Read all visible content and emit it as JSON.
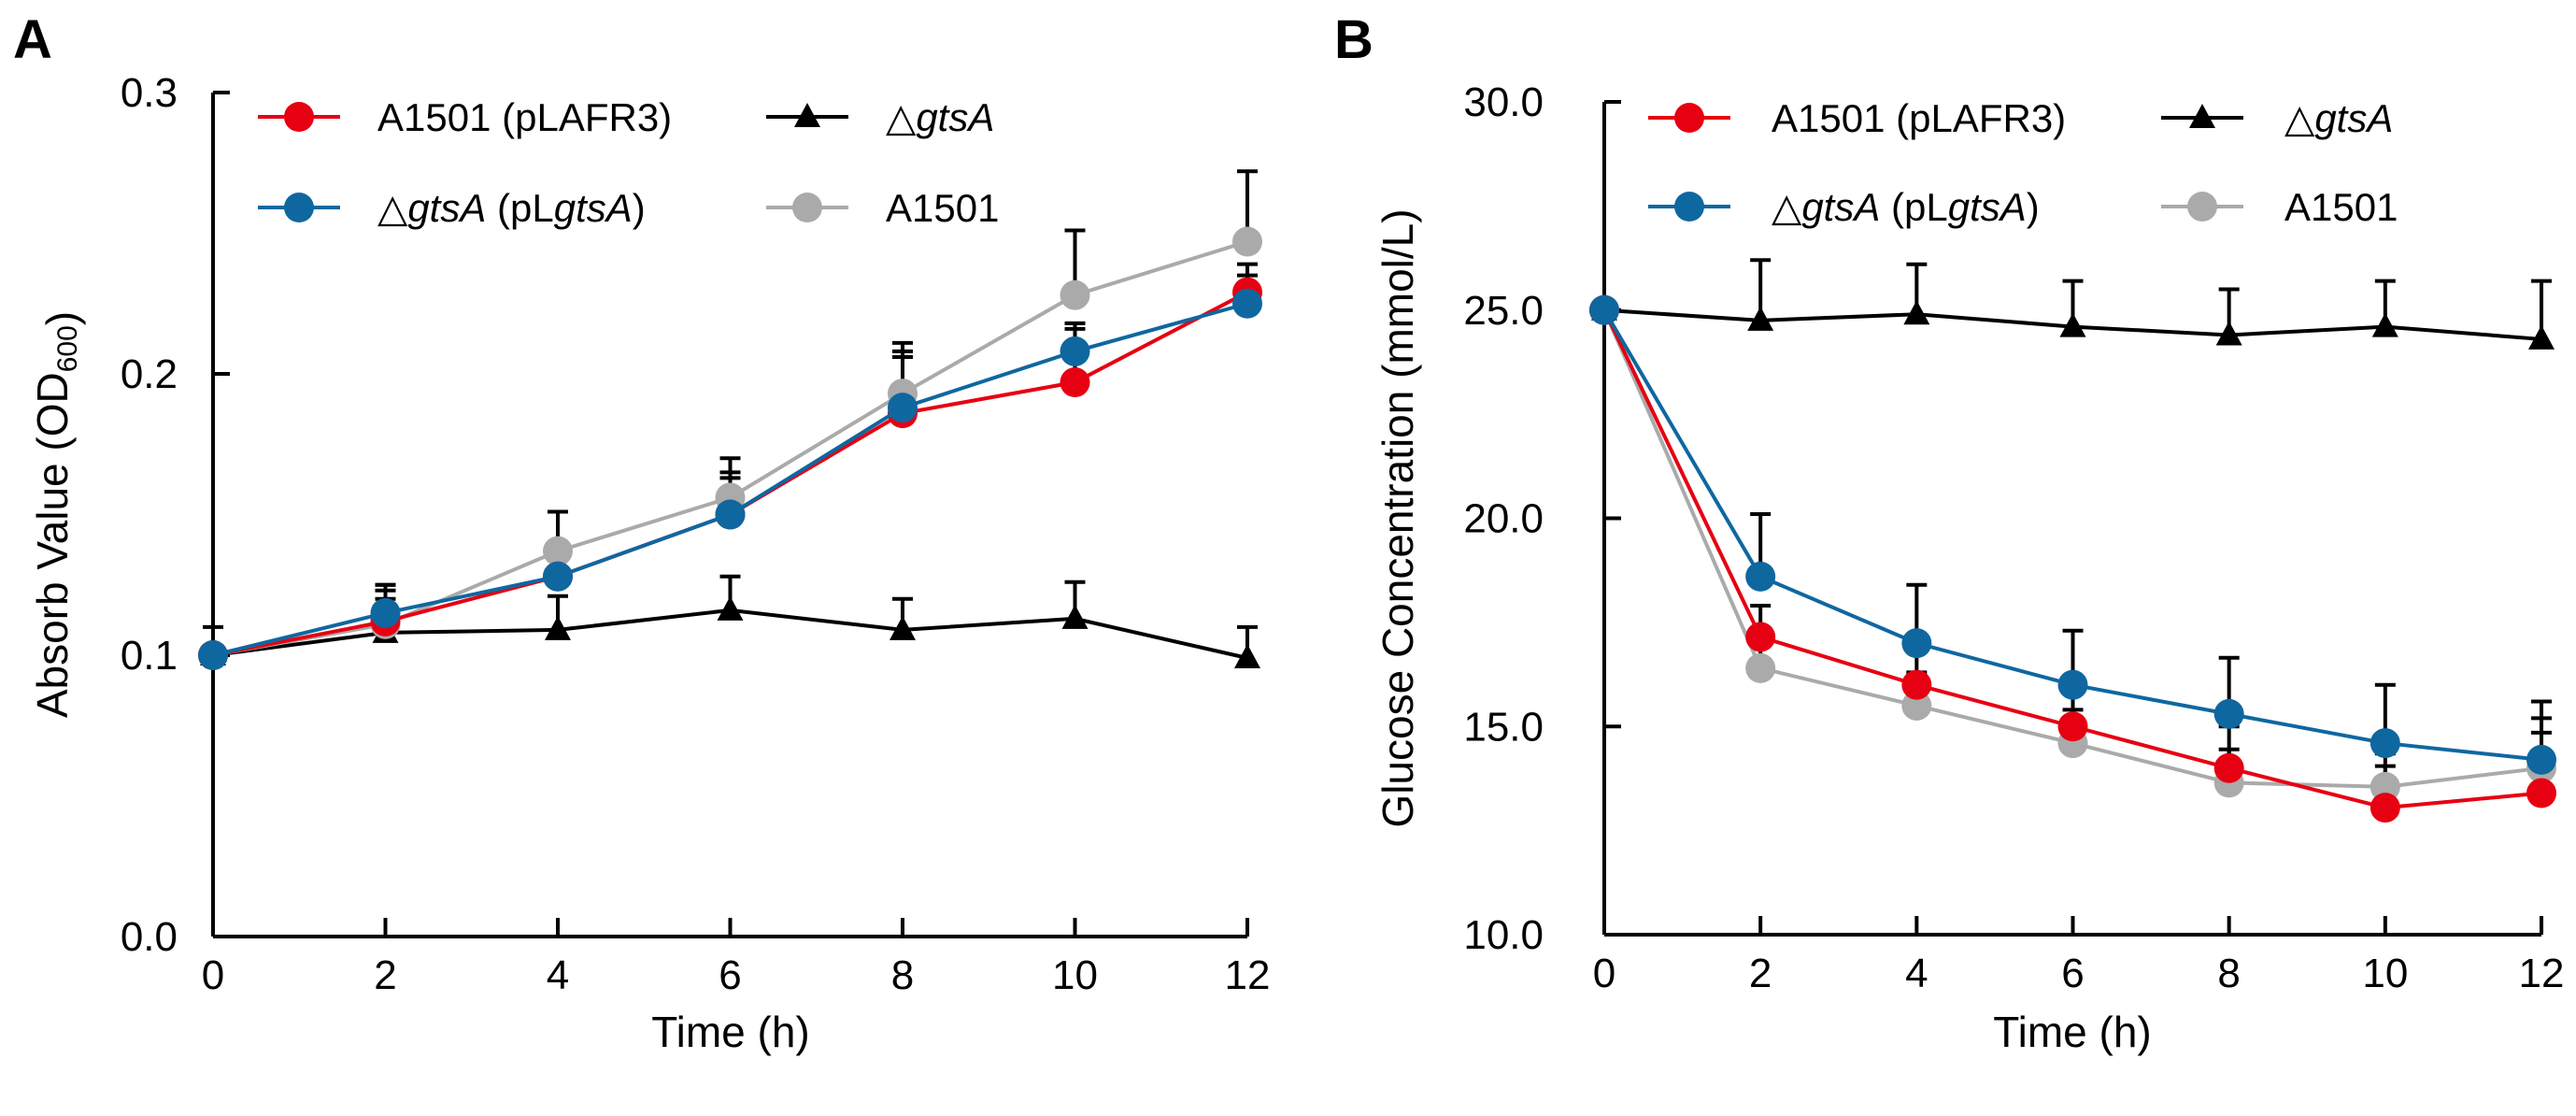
{
  "chart_data": [
    {
      "type": "line",
      "panel_label": "A",
      "xlabel": "Time (h)",
      "ylabel_parts": [
        {
          "t": "Absorb Value (OD"
        },
        {
          "t": "600",
          "sub": true
        },
        {
          "t": ")"
        }
      ],
      "ylabel": "Absorb Value (OD600)",
      "x": [
        0,
        2,
        4,
        6,
        8,
        10,
        12
      ],
      "xlim": [
        0,
        12
      ],
      "ylim": [
        0,
        0.3
      ],
      "x_ticks": [
        "0",
        "2",
        "4",
        "6",
        "8",
        "10",
        "12"
      ],
      "y_ticks": [
        {
          "v": 0,
          "label": "0.0"
        },
        {
          "v": 0.1,
          "label": "0.1"
        },
        {
          "v": 0.2,
          "label": "0.2"
        },
        {
          "v": 0.3,
          "label": "0.3"
        }
      ],
      "grid": false,
      "legend_position": "top",
      "series": [
        {
          "name": "ΔgtsA",
          "label_parts": [
            {
              "t": "△"
            },
            {
              "t": "gtsA",
              "i": true
            }
          ],
          "color": "#000000",
          "marker": "triangle",
          "values": [
            0.1,
            0.108,
            0.109,
            0.116,
            0.109,
            0.113,
            0.099
          ],
          "errors": [
            0.01,
            0.012,
            0.012,
            0.012,
            0.011,
            0.013,
            0.011
          ]
        },
        {
          "name": "A1501",
          "label_parts": [
            {
              "t": "A1501"
            }
          ],
          "color": "#aaaaaa",
          "marker": "circle",
          "values": [
            0.1,
            0.111,
            0.137,
            0.156,
            0.193,
            0.228,
            0.247
          ],
          "errors": [
            0.003,
            0.014,
            0.014,
            0.014,
            0.018,
            0.023,
            0.025
          ]
        },
        {
          "name": "A1501 (pLAFR3)",
          "label_parts": [
            {
              "t": "A1501 (pLAFR3)"
            }
          ],
          "color": "#e60012",
          "marker": "circle",
          "values": [
            0.1,
            0.112,
            0.128,
            0.15,
            0.186,
            0.197,
            0.229
          ],
          "errors": [
            0.003,
            0.013,
            0.01,
            0.015,
            0.022,
            0.019,
            0.01
          ]
        },
        {
          "name": "ΔgtsA (pLgtsA)",
          "label_parts": [
            {
              "t": "△"
            },
            {
              "t": "gtsA",
              "i": true
            },
            {
              "t": " (pL"
            },
            {
              "t": "gtsA",
              "i": true
            },
            {
              "t": ")"
            }
          ],
          "color": "#0f67a0",
          "marker": "circle",
          "values": [
            0.1,
            0.115,
            0.128,
            0.15,
            0.188,
            0.208,
            0.225
          ],
          "errors": [
            0.003,
            0.008,
            0.008,
            0.013,
            0.018,
            0.01,
            0.01
          ]
        }
      ]
    },
    {
      "type": "line",
      "panel_label": "B",
      "xlabel": "Time (h)",
      "ylabel_parts": [
        {
          "t": "Glucose Concentration (mmol/L)"
        }
      ],
      "ylabel": "Glucose Concentration (mmol/L)",
      "x": [
        0,
        2,
        4,
        6,
        8,
        10,
        12
      ],
      "xlim": [
        0,
        12
      ],
      "ylim": [
        10,
        30
      ],
      "x_ticks": [
        "0",
        "2",
        "4",
        "6",
        "8",
        "10",
        "12"
      ],
      "y_ticks": [
        {
          "v": 10,
          "label": "10.0"
        },
        {
          "v": 15,
          "label": "15.0"
        },
        {
          "v": 20,
          "label": "20.0"
        },
        {
          "v": 25,
          "label": "25.0"
        },
        {
          "v": 30,
          "label": "30.0"
        }
      ],
      "grid": false,
      "legend_position": "top",
      "series": [
        {
          "name": "ΔgtsA",
          "label_parts": [
            {
              "t": "△"
            },
            {
              "t": "gtsA",
              "i": true
            }
          ],
          "color": "#000000",
          "marker": "triangle",
          "values": [
            25.0,
            24.75,
            24.9,
            24.6,
            24.4,
            24.6,
            24.3
          ],
          "errors": [
            0,
            1.45,
            1.2,
            1.1,
            1.1,
            1.1,
            1.4
          ]
        },
        {
          "name": "A1501",
          "label_parts": [
            {
              "t": "A1501"
            }
          ],
          "color": "#aaaaaa",
          "marker": "circle",
          "values": [
            25.0,
            16.4,
            15.5,
            14.6,
            13.65,
            13.55,
            14.0
          ],
          "errors": [
            0,
            0.8,
            0.8,
            0.8,
            0.8,
            0.8,
            0.85
          ]
        },
        {
          "name": "A1501 (pLAFR3)",
          "label_parts": [
            {
              "t": "A1501 (pLAFR3)"
            }
          ],
          "color": "#e60012",
          "marker": "circle",
          "values": [
            25.0,
            17.15,
            16.0,
            15.0,
            14.0,
            13.05,
            13.4
          ],
          "errors": [
            0,
            0.75,
            1.0,
            1.0,
            1.0,
            1.0,
            1.8
          ]
        },
        {
          "name": "ΔgtsA (pLgtsA)",
          "label_parts": [
            {
              "t": "△"
            },
            {
              "t": "gtsA",
              "i": true
            },
            {
              "t": " (pL"
            },
            {
              "t": "gtsA",
              "i": true
            },
            {
              "t": ")"
            }
          ],
          "color": "#0f67a0",
          "marker": "circle",
          "values": [
            25.0,
            18.6,
            17.0,
            16.0,
            15.3,
            14.6,
            14.2
          ],
          "errors": [
            0,
            1.5,
            1.4,
            1.3,
            1.35,
            1.4,
            1.4
          ]
        }
      ]
    }
  ]
}
